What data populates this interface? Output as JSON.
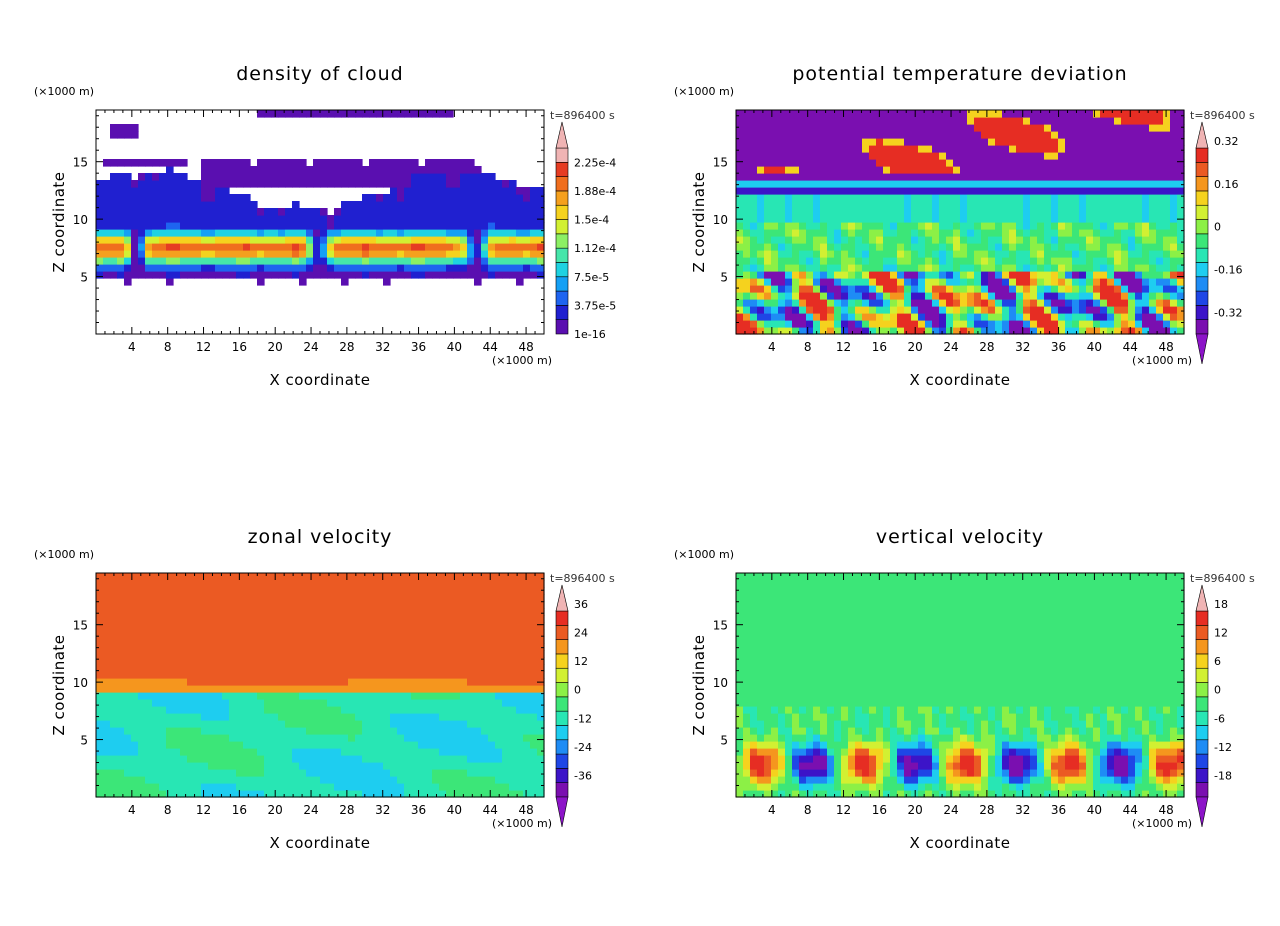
{
  "chart_data": [
    {
      "type": "heatmap",
      "title": "density of cloud",
      "xlabel": "X coordinate",
      "ylabel": "Z coordinate",
      "x_unit": "(×1000 m)",
      "y_unit": "(×1000 m)",
      "time_label": "t=896400 s",
      "x_ticks": [
        4,
        8,
        12,
        16,
        20,
        24,
        28,
        32,
        36,
        40,
        44,
        48
      ],
      "y_ticks": [
        5,
        10,
        15
      ],
      "xlim": [
        0,
        50
      ],
      "ylim": [
        0,
        19.5
      ],
      "colorbar": {
        "labels": [
          "1e-16",
          "3.75e-5",
          "7.5e-5",
          "1.12e-4",
          "1.5e-4",
          "1.88e-4",
          "2.25e-4"
        ],
        "colors": [
          "#5a0fb0",
          "#2020d0",
          "#1e64f0",
          "#14a0f5",
          "#1ed2e1",
          "#46e6aa",
          "#8cf064",
          "#d2f032",
          "#f5d21e",
          "#f5a01e",
          "#f06e1e",
          "#e63c23",
          "#f0b4b4"
        ]
      }
    },
    {
      "type": "heatmap",
      "title": "potential temperature deviation",
      "xlabel": "X coordinate",
      "ylabel": "Z coordinate",
      "x_unit": "(×1000 m)",
      "y_unit": "(×1000 m)",
      "time_label": "t=896400 s",
      "x_ticks": [
        4,
        8,
        12,
        16,
        20,
        24,
        28,
        32,
        36,
        40,
        44,
        48
      ],
      "y_ticks": [
        5,
        10,
        15
      ],
      "xlim": [
        0,
        50
      ],
      "ylim": [
        0,
        19.5
      ],
      "colorbar": {
        "labels": [
          "-0.32",
          "-0.16",
          "0",
          "0.16",
          "0.32"
        ],
        "colors": [
          "#7a0fb0",
          "#3c14c8",
          "#1e46e6",
          "#1e8cf5",
          "#1ecdf0",
          "#28e6b4",
          "#3ce678",
          "#8cf046",
          "#d2f032",
          "#f5d21e",
          "#f5961e",
          "#eb5a23",
          "#e62d23"
        ]
      }
    },
    {
      "type": "heatmap",
      "title": "zonal velocity",
      "xlabel": "X coordinate",
      "ylabel": "Z coordinate",
      "x_unit": "(×1000 m)",
      "y_unit": "(×1000 m)",
      "time_label": "t=896400 s",
      "x_ticks": [
        4,
        8,
        12,
        16,
        20,
        24,
        28,
        32,
        36,
        40,
        44,
        48
      ],
      "y_ticks": [
        5,
        10,
        15
      ],
      "xlim": [
        0,
        50
      ],
      "ylim": [
        0,
        19.5
      ],
      "colorbar": {
        "labels": [
          "-36",
          "-24",
          "-12",
          "0",
          "12",
          "24",
          "36"
        ],
        "colors": [
          "#7a0fb0",
          "#3c14c8",
          "#1e46e6",
          "#1e8cf5",
          "#1ecdf0",
          "#28e6b4",
          "#3ce678",
          "#8cf046",
          "#d2f032",
          "#f5d21e",
          "#f5961e",
          "#eb5a23",
          "#e62d23"
        ]
      }
    },
    {
      "type": "heatmap",
      "title": "vertical velocity",
      "xlabel": "X coordinate",
      "ylabel": "Z coordinate",
      "x_unit": "(×1000 m)",
      "y_unit": "(×1000 m)",
      "time_label": "t=896400 s",
      "x_ticks": [
        4,
        8,
        12,
        16,
        20,
        24,
        28,
        32,
        36,
        40,
        44,
        48
      ],
      "y_ticks": [
        5,
        10,
        15
      ],
      "xlim": [
        0,
        50
      ],
      "ylim": [
        0,
        19.5
      ],
      "colorbar": {
        "labels": [
          "-18",
          "-12",
          "-6",
          "0",
          "6",
          "12",
          "18"
        ],
        "colors": [
          "#7a0fb0",
          "#3c14c8",
          "#1e46e6",
          "#1e8cf5",
          "#1ecdf0",
          "#28e6b4",
          "#3ce678",
          "#8cf046",
          "#d2f032",
          "#f5d21e",
          "#f5961e",
          "#eb5a23",
          "#e62d23"
        ]
      }
    }
  ]
}
